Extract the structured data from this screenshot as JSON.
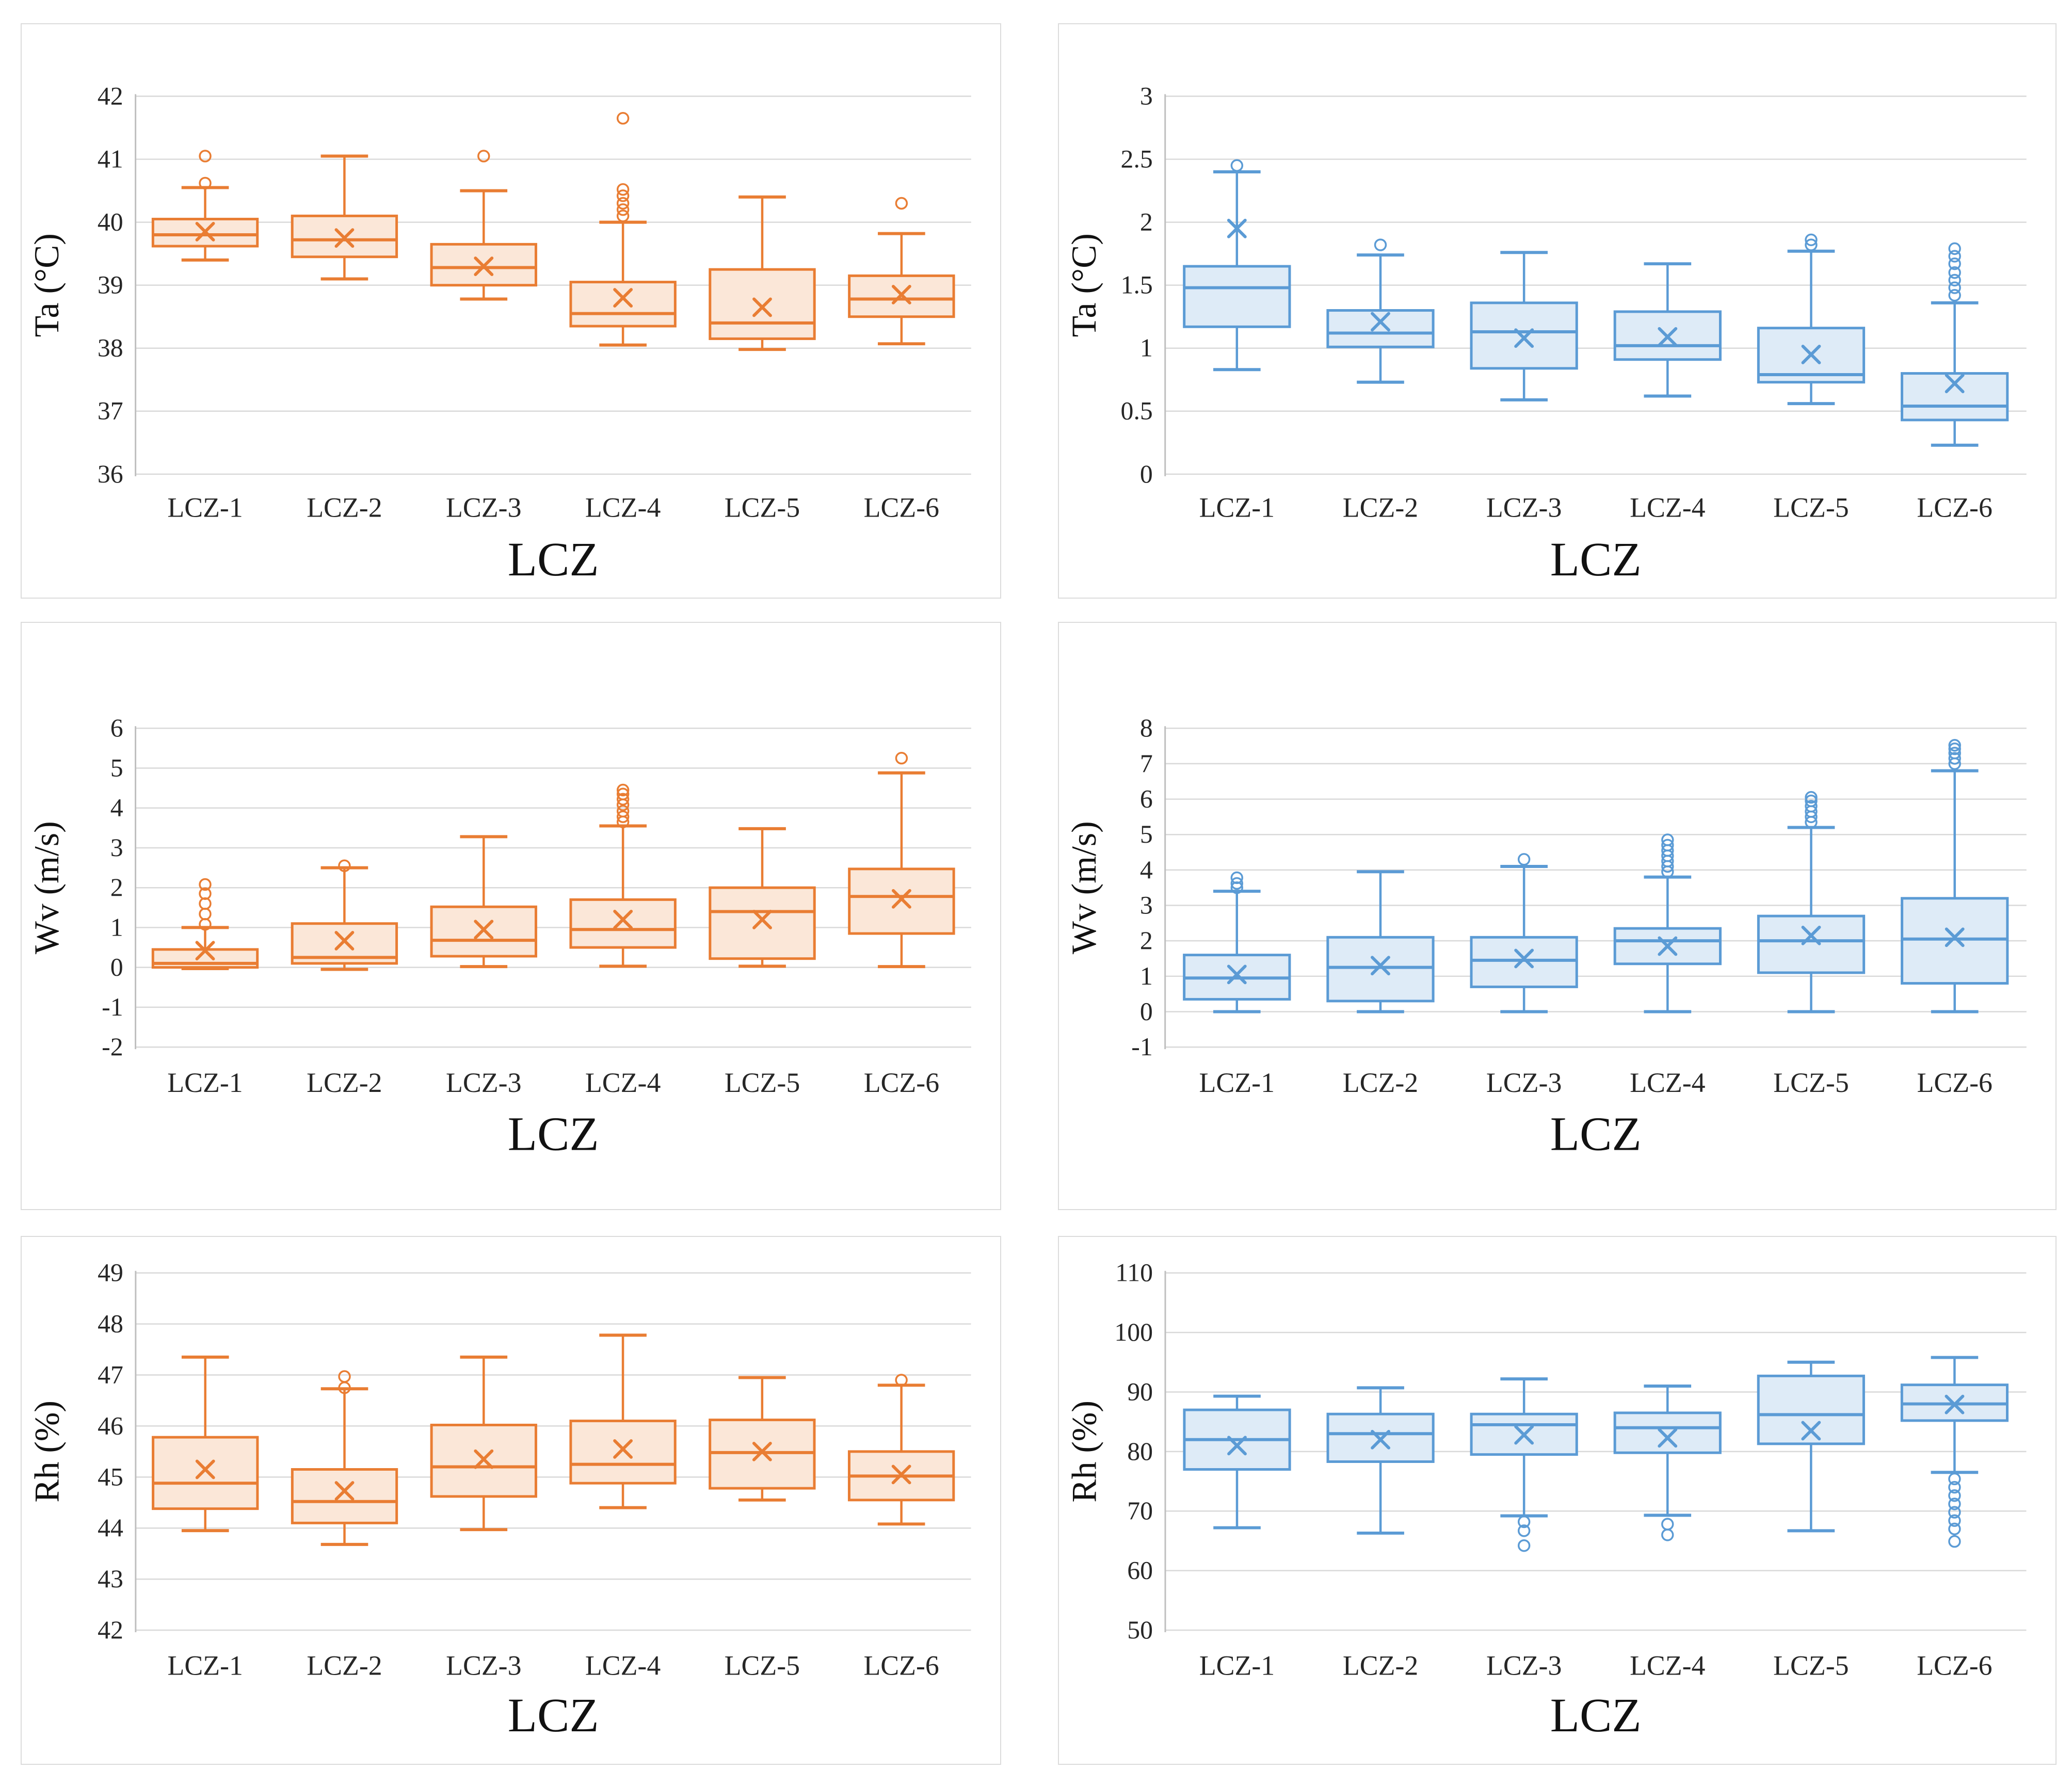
{
  "page": {
    "background": "#ffffff",
    "grid_color": "#d9d9d9",
    "axis_color": "#bfbfbf",
    "text_color": "#262626"
  },
  "chart_data": [
    {
      "type": "box",
      "panel": {
        "row": 0,
        "col": 0
      },
      "xlabel": "LCZ",
      "ylabel": "Ta (°C)",
      "categories": [
        "LCZ-1",
        "LCZ-2",
        "LCZ-3",
        "LCZ-4",
        "LCZ-5",
        "LCZ-6"
      ],
      "ylim": [
        36,
        42
      ],
      "yticks": [
        36,
        37,
        38,
        39,
        40,
        41,
        42
      ],
      "ytick_labels": [
        "36",
        "37",
        "38",
        "39",
        "40",
        "41",
        "42"
      ],
      "grid": true,
      "legend": "none",
      "colors": {
        "stroke": "#e97d33",
        "fill": "#fbe7d8"
      },
      "boxes": [
        {
          "category": "LCZ-1",
          "min": 39.4,
          "q1": 39.62,
          "median": 39.8,
          "q3": 40.05,
          "max": 40.55,
          "mean": 39.85,
          "outliers": [
            40.62,
            41.05
          ]
        },
        {
          "category": "LCZ-2",
          "min": 39.1,
          "q1": 39.45,
          "median": 39.72,
          "q3": 40.1,
          "max": 41.05,
          "mean": 39.75,
          "outliers": []
        },
        {
          "category": "LCZ-3",
          "min": 38.78,
          "q1": 39.0,
          "median": 39.28,
          "q3": 39.65,
          "max": 40.5,
          "mean": 39.3,
          "outliers": [
            41.05
          ]
        },
        {
          "category": "LCZ-4",
          "min": 38.05,
          "q1": 38.35,
          "median": 38.55,
          "q3": 39.05,
          "max": 40.0,
          "mean": 38.8,
          "outliers": [
            40.1,
            40.2,
            40.3,
            40.42,
            40.52,
            41.65
          ]
        },
        {
          "category": "LCZ-5",
          "min": 37.98,
          "q1": 38.15,
          "median": 38.4,
          "q3": 39.25,
          "max": 40.4,
          "mean": 38.65,
          "outliers": []
        },
        {
          "category": "LCZ-6",
          "min": 38.07,
          "q1": 38.5,
          "median": 38.78,
          "q3": 39.15,
          "max": 39.82,
          "mean": 38.85,
          "outliers": [
            40.3
          ]
        }
      ]
    },
    {
      "type": "box",
      "panel": {
        "row": 0,
        "col": 1
      },
      "xlabel": "LCZ",
      "ylabel": "Ta (°C)",
      "categories": [
        "LCZ-1",
        "LCZ-2",
        "LCZ-3",
        "LCZ-4",
        "LCZ-5",
        "LCZ-6"
      ],
      "ylim": [
        0,
        3
      ],
      "yticks": [
        0,
        0.5,
        1,
        1.5,
        2,
        2.5,
        3
      ],
      "ytick_labels": [
        "0",
        "0.5",
        "1",
        "1.5",
        "2",
        "2.5",
        "3"
      ],
      "grid": true,
      "legend": "none",
      "colors": {
        "stroke": "#5b9bd5",
        "fill": "#deebf7"
      },
      "boxes": [
        {
          "category": "LCZ-1",
          "min": 0.83,
          "q1": 1.17,
          "median": 1.48,
          "q3": 1.65,
          "max": 2.4,
          "mean": 1.95,
          "outliers": [
            2.45
          ]
        },
        {
          "category": "LCZ-2",
          "min": 0.73,
          "q1": 1.01,
          "median": 1.12,
          "q3": 1.3,
          "max": 1.74,
          "mean": 1.21,
          "outliers": [
            1.82
          ]
        },
        {
          "category": "LCZ-3",
          "min": 0.59,
          "q1": 0.84,
          "median": 1.13,
          "q3": 1.36,
          "max": 1.76,
          "mean": 1.08,
          "outliers": []
        },
        {
          "category": "LCZ-4",
          "min": 0.62,
          "q1": 0.91,
          "median": 1.02,
          "q3": 1.29,
          "max": 1.67,
          "mean": 1.09,
          "outliers": []
        },
        {
          "category": "LCZ-5",
          "min": 0.56,
          "q1": 0.73,
          "median": 0.79,
          "q3": 1.16,
          "max": 1.77,
          "mean": 0.95,
          "outliers": [
            1.82,
            1.86
          ]
        },
        {
          "category": "LCZ-6",
          "min": 0.23,
          "q1": 0.43,
          "median": 0.54,
          "q3": 0.8,
          "max": 1.36,
          "mean": 0.72,
          "outliers": [
            1.42,
            1.48,
            1.54,
            1.6,
            1.67,
            1.73,
            1.79
          ]
        }
      ]
    },
    {
      "type": "box",
      "panel": {
        "row": 1,
        "col": 0
      },
      "xlabel": "LCZ",
      "ylabel": "Wv (m/s)",
      "categories": [
        "LCZ-1",
        "LCZ-2",
        "LCZ-3",
        "LCZ-4",
        "LCZ-5",
        "LCZ-6"
      ],
      "ylim": [
        -2,
        6
      ],
      "yticks": [
        -2,
        -1,
        0,
        1,
        2,
        3,
        4,
        5,
        6
      ],
      "ytick_labels": [
        "-2",
        "-1",
        "0",
        "1",
        "2",
        "3",
        "4",
        "5",
        "6"
      ],
      "grid": true,
      "legend": "none",
      "colors": {
        "stroke": "#e97d33",
        "fill": "#fbe7d8"
      },
      "boxes": [
        {
          "category": "LCZ-1",
          "min": -0.03,
          "q1": 0.0,
          "median": 0.1,
          "q3": 0.45,
          "max": 1.0,
          "mean": 0.42,
          "outliers": [
            1.08,
            1.34,
            1.6,
            1.85,
            2.08
          ]
        },
        {
          "category": "LCZ-2",
          "min": -0.05,
          "q1": 0.1,
          "median": 0.25,
          "q3": 1.1,
          "max": 2.5,
          "mean": 0.67,
          "outliers": [
            2.55
          ]
        },
        {
          "category": "LCZ-3",
          "min": 0.02,
          "q1": 0.28,
          "median": 0.68,
          "q3": 1.52,
          "max": 3.28,
          "mean": 0.95,
          "outliers": []
        },
        {
          "category": "LCZ-4",
          "min": 0.03,
          "q1": 0.5,
          "median": 0.95,
          "q3": 1.7,
          "max": 3.55,
          "mean": 1.2,
          "outliers": [
            3.65,
            3.78,
            3.92,
            4.08,
            4.22,
            4.35,
            4.45
          ]
        },
        {
          "category": "LCZ-5",
          "min": 0.03,
          "q1": 0.22,
          "median": 1.4,
          "q3": 2.0,
          "max": 3.48,
          "mean": 1.2,
          "outliers": []
        },
        {
          "category": "LCZ-6",
          "min": 0.02,
          "q1": 0.85,
          "median": 1.78,
          "q3": 2.47,
          "max": 4.88,
          "mean": 1.72,
          "outliers": [
            5.25
          ]
        }
      ]
    },
    {
      "type": "box",
      "panel": {
        "row": 1,
        "col": 1
      },
      "xlabel": "LCZ",
      "ylabel": "Wv (m/s)",
      "categories": [
        "LCZ-1",
        "LCZ-2",
        "LCZ-3",
        "LCZ-4",
        "LCZ-5",
        "LCZ-6"
      ],
      "ylim": [
        -1,
        8
      ],
      "yticks": [
        -1,
        0,
        1,
        2,
        3,
        4,
        5,
        6,
        7,
        8
      ],
      "ytick_labels": [
        "-1",
        "0",
        "1",
        "2",
        "3",
        "4",
        "5",
        "6",
        "7",
        "8"
      ],
      "grid": true,
      "legend": "none",
      "colors": {
        "stroke": "#5b9bd5",
        "fill": "#deebf7"
      },
      "boxes": [
        {
          "category": "LCZ-1",
          "min": 0.0,
          "q1": 0.35,
          "median": 0.95,
          "q3": 1.6,
          "max": 3.4,
          "mean": 1.05,
          "outliers": [
            3.5,
            3.62,
            3.78
          ]
        },
        {
          "category": "LCZ-2",
          "min": 0.0,
          "q1": 0.3,
          "median": 1.25,
          "q3": 2.1,
          "max": 3.95,
          "mean": 1.3,
          "outliers": []
        },
        {
          "category": "LCZ-3",
          "min": 0.0,
          "q1": 0.7,
          "median": 1.45,
          "q3": 2.1,
          "max": 4.1,
          "mean": 1.5,
          "outliers": [
            4.3
          ]
        },
        {
          "category": "LCZ-4",
          "min": 0.0,
          "q1": 1.35,
          "median": 2.0,
          "q3": 2.35,
          "max": 3.8,
          "mean": 1.85,
          "outliers": [
            3.95,
            4.1,
            4.25,
            4.4,
            4.55,
            4.7,
            4.85
          ]
        },
        {
          "category": "LCZ-5",
          "min": 0.0,
          "q1": 1.1,
          "median": 2.0,
          "q3": 2.7,
          "max": 5.2,
          "mean": 2.15,
          "outliers": [
            5.35,
            5.5,
            5.65,
            5.8,
            5.95,
            6.05
          ]
        },
        {
          "category": "LCZ-6",
          "min": 0.0,
          "q1": 0.8,
          "median": 2.05,
          "q3": 3.2,
          "max": 6.8,
          "mean": 2.1,
          "outliers": [
            7.0,
            7.15,
            7.3,
            7.42,
            7.52
          ]
        }
      ]
    },
    {
      "type": "box",
      "panel": {
        "row": 2,
        "col": 0
      },
      "xlabel": "LCZ",
      "ylabel": "Rh (%)",
      "categories": [
        "LCZ-1",
        "LCZ-2",
        "LCZ-3",
        "LCZ-4",
        "LCZ-5",
        "LCZ-6"
      ],
      "ylim": [
        42,
        49
      ],
      "yticks": [
        42,
        43,
        44,
        45,
        46,
        47,
        48,
        49
      ],
      "ytick_labels": [
        "42",
        "43",
        "44",
        "45",
        "46",
        "47",
        "48",
        "49"
      ],
      "grid": true,
      "legend": "none",
      "colors": {
        "stroke": "#e97d33",
        "fill": "#fbe7d8"
      },
      "boxes": [
        {
          "category": "LCZ-1",
          "min": 43.95,
          "q1": 44.38,
          "median": 44.88,
          "q3": 45.78,
          "max": 47.35,
          "mean": 45.15,
          "outliers": []
        },
        {
          "category": "LCZ-2",
          "min": 43.68,
          "q1": 44.1,
          "median": 44.52,
          "q3": 45.15,
          "max": 46.73,
          "mean": 44.73,
          "outliers": [
            46.75,
            46.97
          ]
        },
        {
          "category": "LCZ-3",
          "min": 43.97,
          "q1": 44.62,
          "median": 45.2,
          "q3": 46.02,
          "max": 47.35,
          "mean": 45.35,
          "outliers": []
        },
        {
          "category": "LCZ-4",
          "min": 44.4,
          "q1": 44.88,
          "median": 45.25,
          "q3": 46.1,
          "max": 47.78,
          "mean": 45.55,
          "outliers": []
        },
        {
          "category": "LCZ-5",
          "min": 44.55,
          "q1": 44.78,
          "median": 45.48,
          "q3": 46.12,
          "max": 46.95,
          "mean": 45.5,
          "outliers": []
        },
        {
          "category": "LCZ-6",
          "min": 44.08,
          "q1": 44.55,
          "median": 45.02,
          "q3": 45.5,
          "max": 46.8,
          "mean": 45.05,
          "outliers": [
            46.9
          ]
        }
      ]
    },
    {
      "type": "box",
      "panel": {
        "row": 2,
        "col": 1
      },
      "xlabel": "LCZ",
      "ylabel": "Rh (%)",
      "categories": [
        "LCZ-1",
        "LCZ-2",
        "LCZ-3",
        "LCZ-4",
        "LCZ-5",
        "LCZ-6"
      ],
      "ylim": [
        50,
        110
      ],
      "yticks": [
        50,
        60,
        70,
        80,
        90,
        100,
        110
      ],
      "ytick_labels": [
        "50",
        "60",
        "70",
        "80",
        "90",
        "100",
        "110"
      ],
      "grid": true,
      "legend": "none",
      "colors": {
        "stroke": "#5b9bd5",
        "fill": "#deebf7"
      },
      "boxes": [
        {
          "category": "LCZ-1",
          "min": 67.2,
          "q1": 77.0,
          "median": 82.0,
          "q3": 87.0,
          "max": 89.3,
          "mean": 81.0,
          "outliers": []
        },
        {
          "category": "LCZ-2",
          "min": 66.3,
          "q1": 78.3,
          "median": 83.0,
          "q3": 86.3,
          "max": 90.7,
          "mean": 82.0,
          "outliers": []
        },
        {
          "category": "LCZ-3",
          "min": 69.2,
          "q1": 79.5,
          "median": 84.5,
          "q3": 86.3,
          "max": 92.2,
          "mean": 82.8,
          "outliers": [
            68.2,
            66.7,
            64.2
          ]
        },
        {
          "category": "LCZ-4",
          "min": 69.3,
          "q1": 79.8,
          "median": 84.0,
          "q3": 86.5,
          "max": 91.0,
          "mean": 82.3,
          "outliers": [
            67.8,
            66.0
          ]
        },
        {
          "category": "LCZ-5",
          "min": 66.7,
          "q1": 81.3,
          "median": 86.2,
          "q3": 92.7,
          "max": 95.0,
          "mean": 83.5,
          "outliers": []
        },
        {
          "category": "LCZ-6",
          "min": 76.5,
          "q1": 85.2,
          "median": 88.0,
          "q3": 91.2,
          "max": 95.8,
          "mean": 87.9,
          "outliers": [
            75.4,
            74.0,
            72.6,
            71.2,
            69.8,
            68.4,
            67.0,
            64.9
          ]
        }
      ]
    }
  ]
}
